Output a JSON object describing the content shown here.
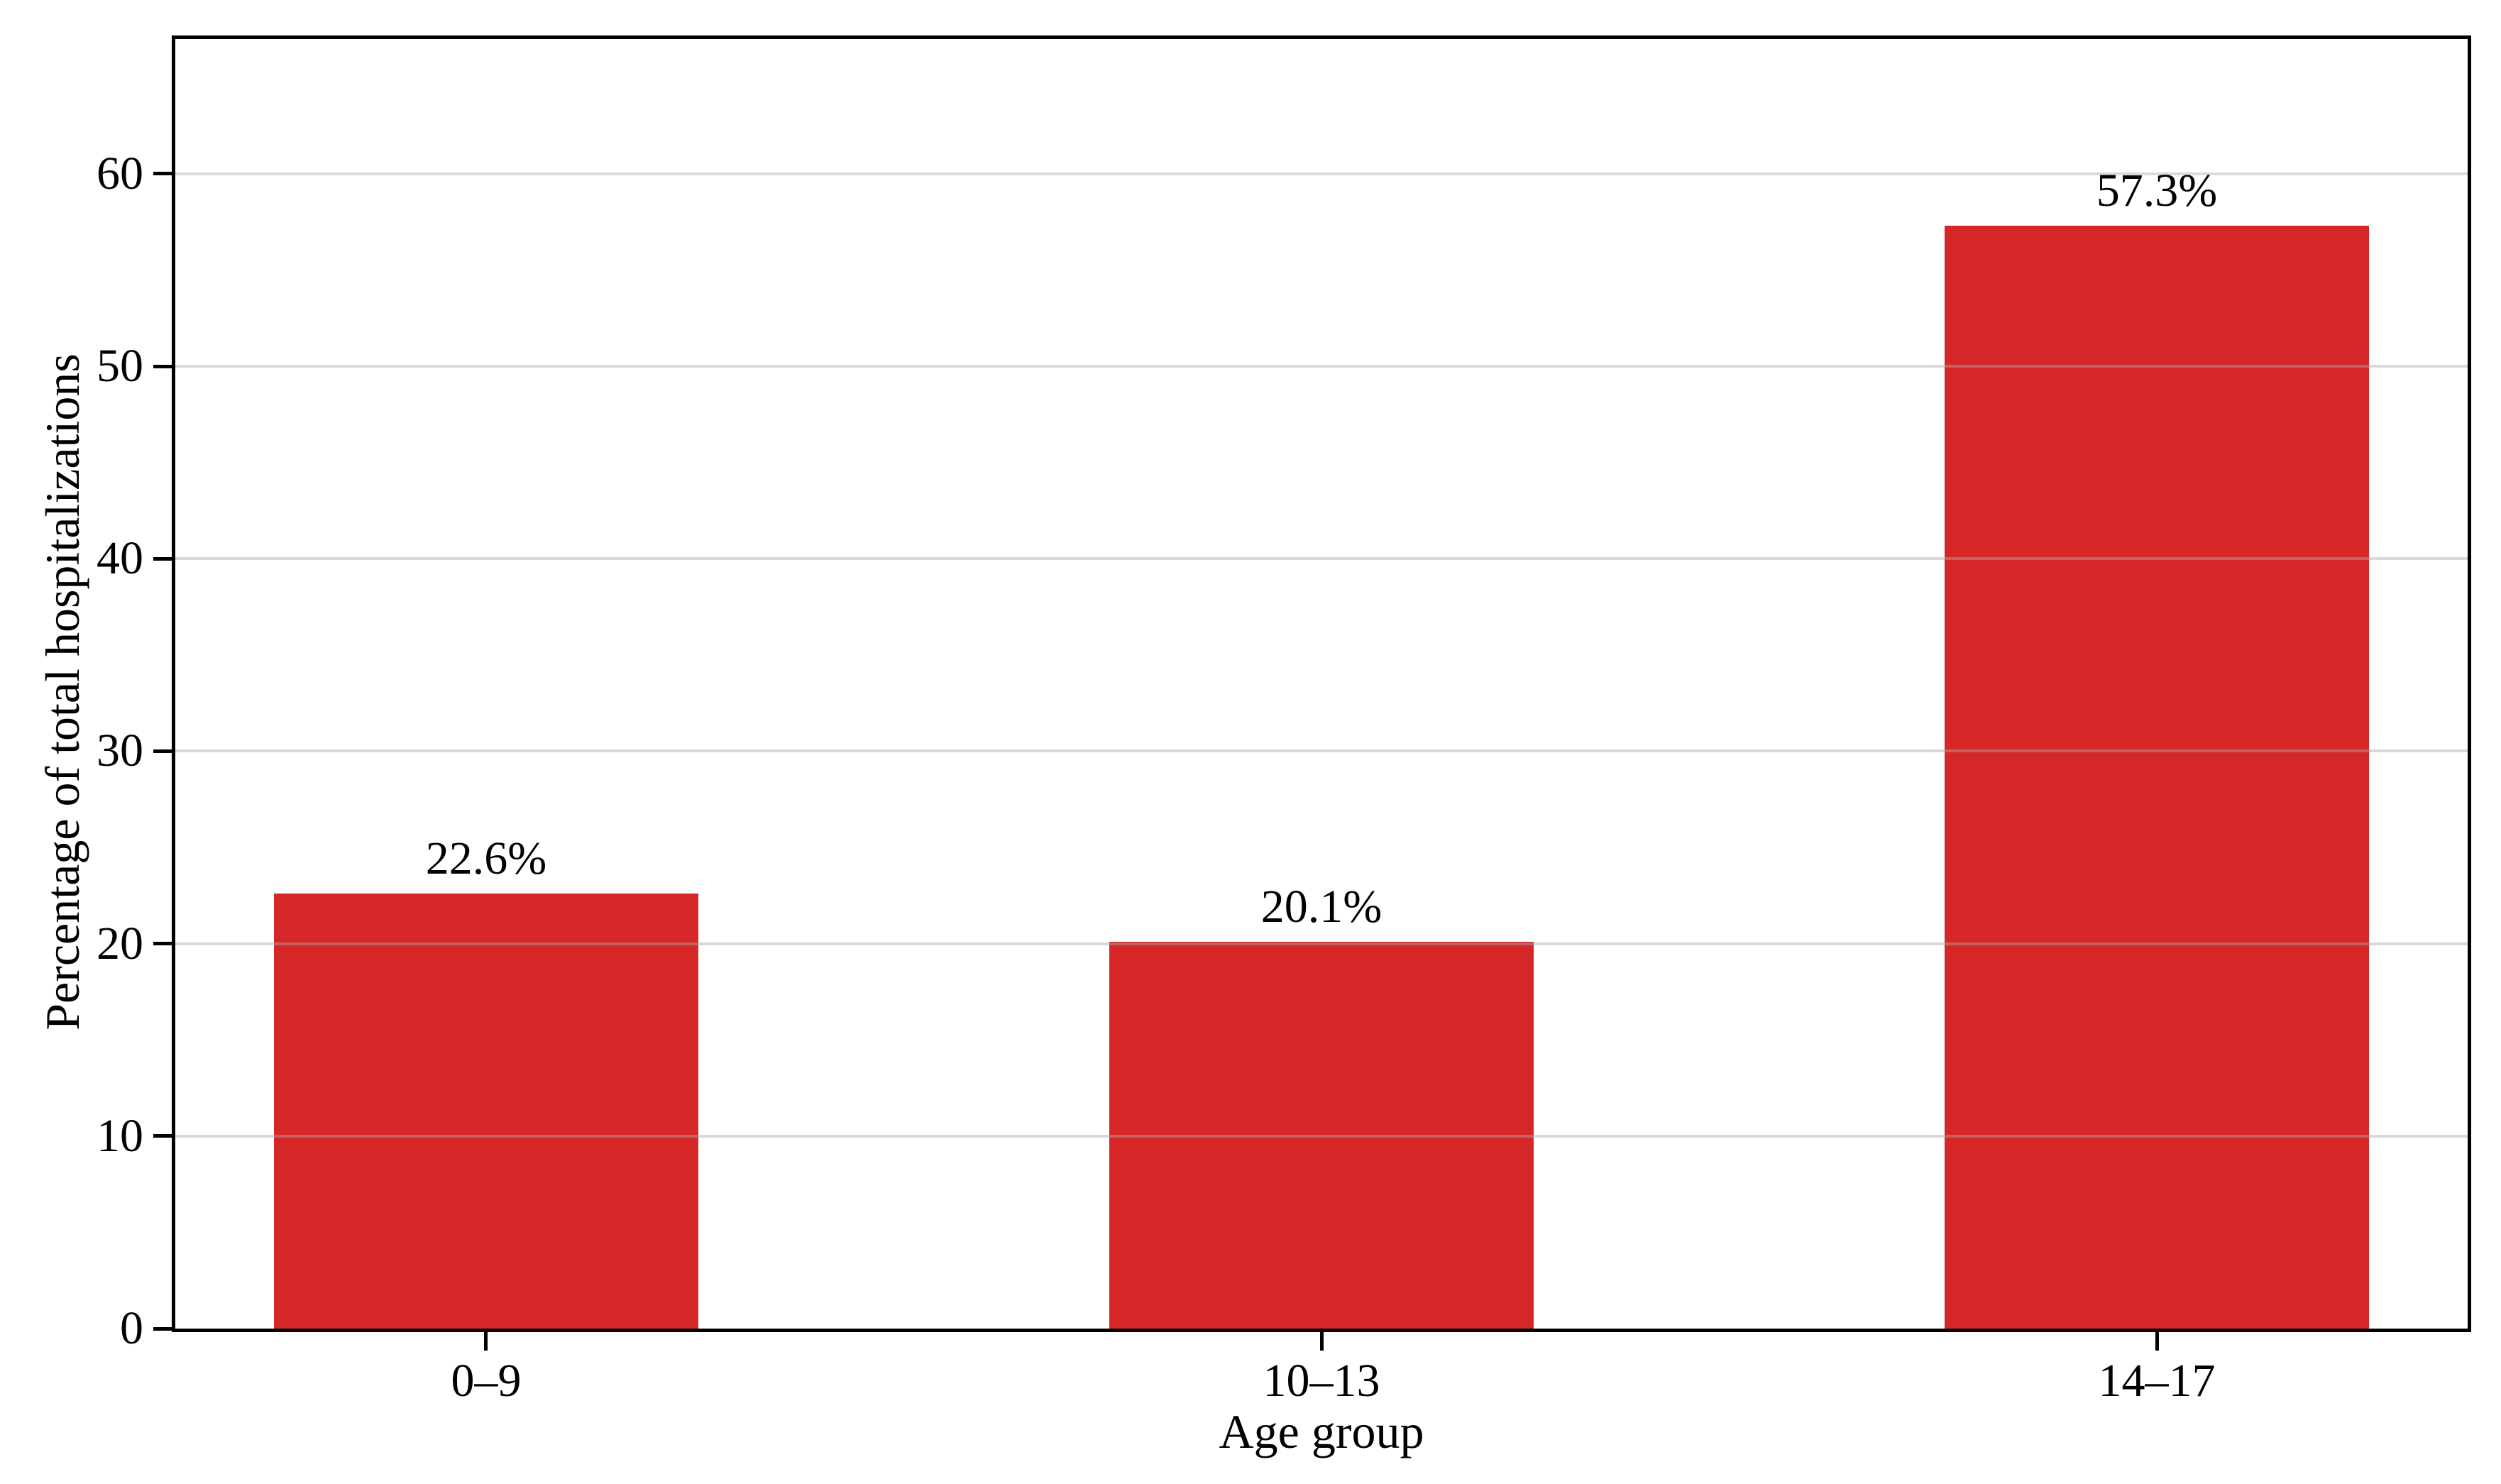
{
  "chart_data": {
    "type": "bar",
    "title": "",
    "categories": [
      "0–9",
      "10–13",
      "14–17"
    ],
    "values": [
      22.6,
      20.1,
      57.3
    ],
    "bar_labels": [
      "22.6%",
      "20.1%",
      "57.3%"
    ],
    "xlabel": "Age group",
    "ylabel": "Percentage of total hospitalizations",
    "ylim": [
      0,
      67
    ],
    "yticks": [
      0,
      10,
      20,
      30,
      40,
      50,
      60
    ],
    "grid": "horizontal gridlines at each y tick, light gray, drawn over bars",
    "legend": "none",
    "frame": "full box around plot area",
    "colors": {
      "bar": "#d62728",
      "gridline": "rgba(170,170,170,0.45)",
      "axis": "#000000",
      "text": "#000000",
      "background": "#ffffff"
    }
  }
}
